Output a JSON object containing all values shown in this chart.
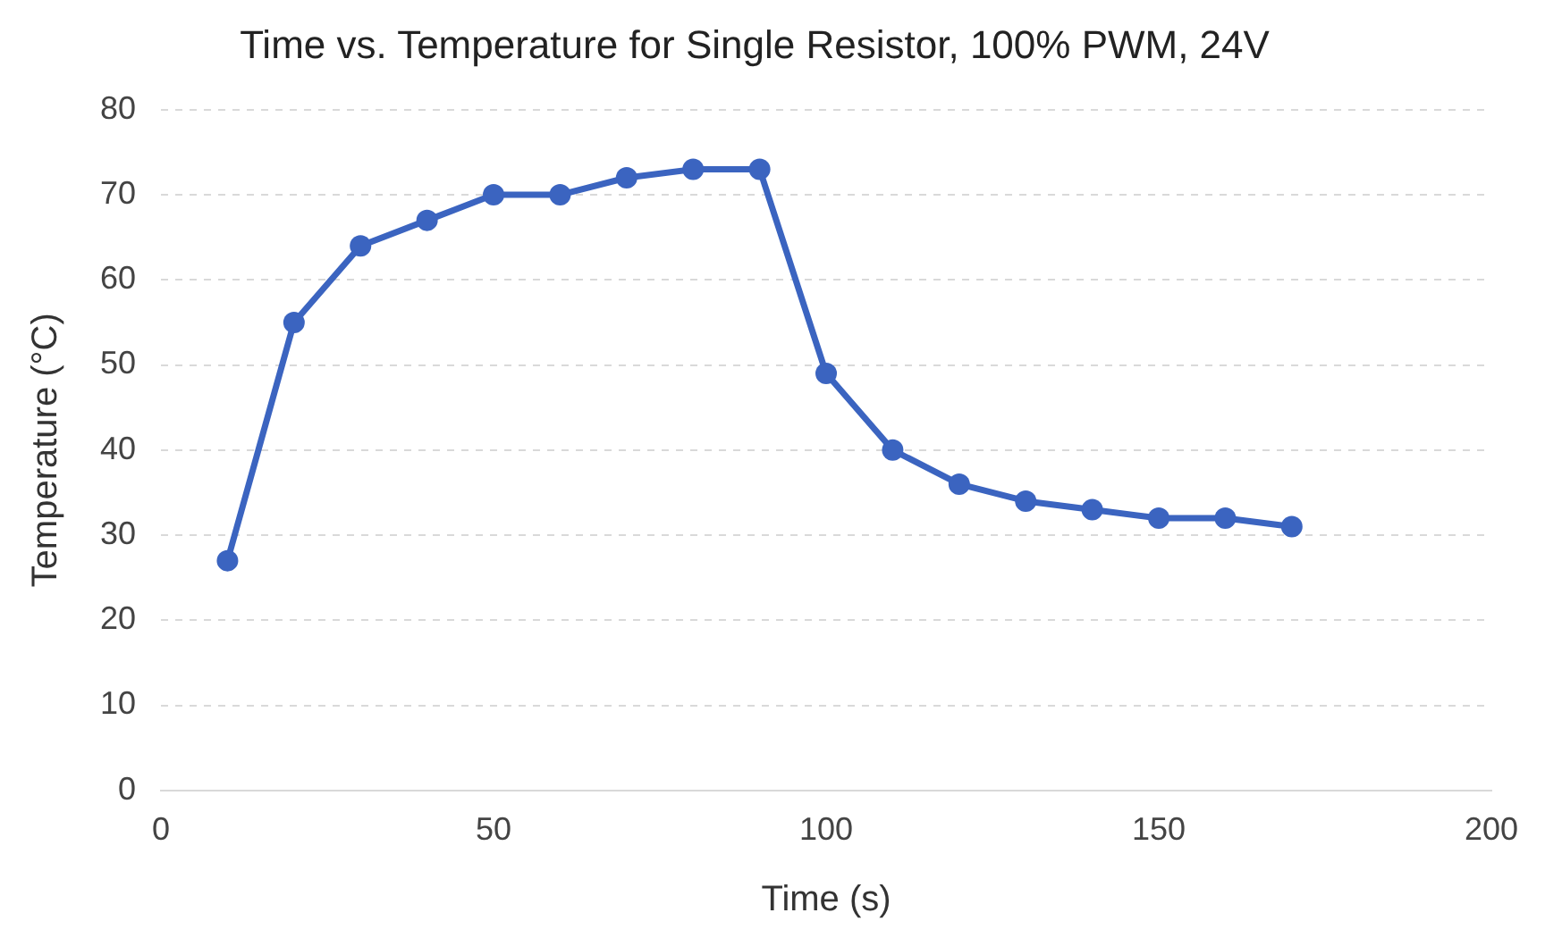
{
  "chart_data": {
    "type": "line",
    "title": "Time vs. Temperature for Single Resistor, 100% PWM, 24V",
    "xlabel": "Time (s)",
    "ylabel": "Temperature (°C)",
    "x": [
      10,
      20,
      30,
      40,
      50,
      60,
      70,
      80,
      90,
      100,
      110,
      120,
      130,
      140,
      150,
      160,
      170
    ],
    "series": [
      {
        "color": "#3b64c0",
        "values": [
          27,
          55,
          64,
          67,
          70,
          70,
          72,
          73,
          73,
          49,
          40,
          36,
          34,
          33,
          32,
          32,
          31
        ]
      }
    ],
    "xlim": [
      0,
      200
    ],
    "xticks": [
      0,
      50,
      100,
      150,
      200
    ],
    "ylim": [
      0,
      80
    ],
    "yticks": [
      0,
      10,
      20,
      30,
      40,
      50,
      60,
      70,
      80
    ],
    "grid": "y",
    "legend": false,
    "marker": "circle",
    "line_style": "solid"
  }
}
